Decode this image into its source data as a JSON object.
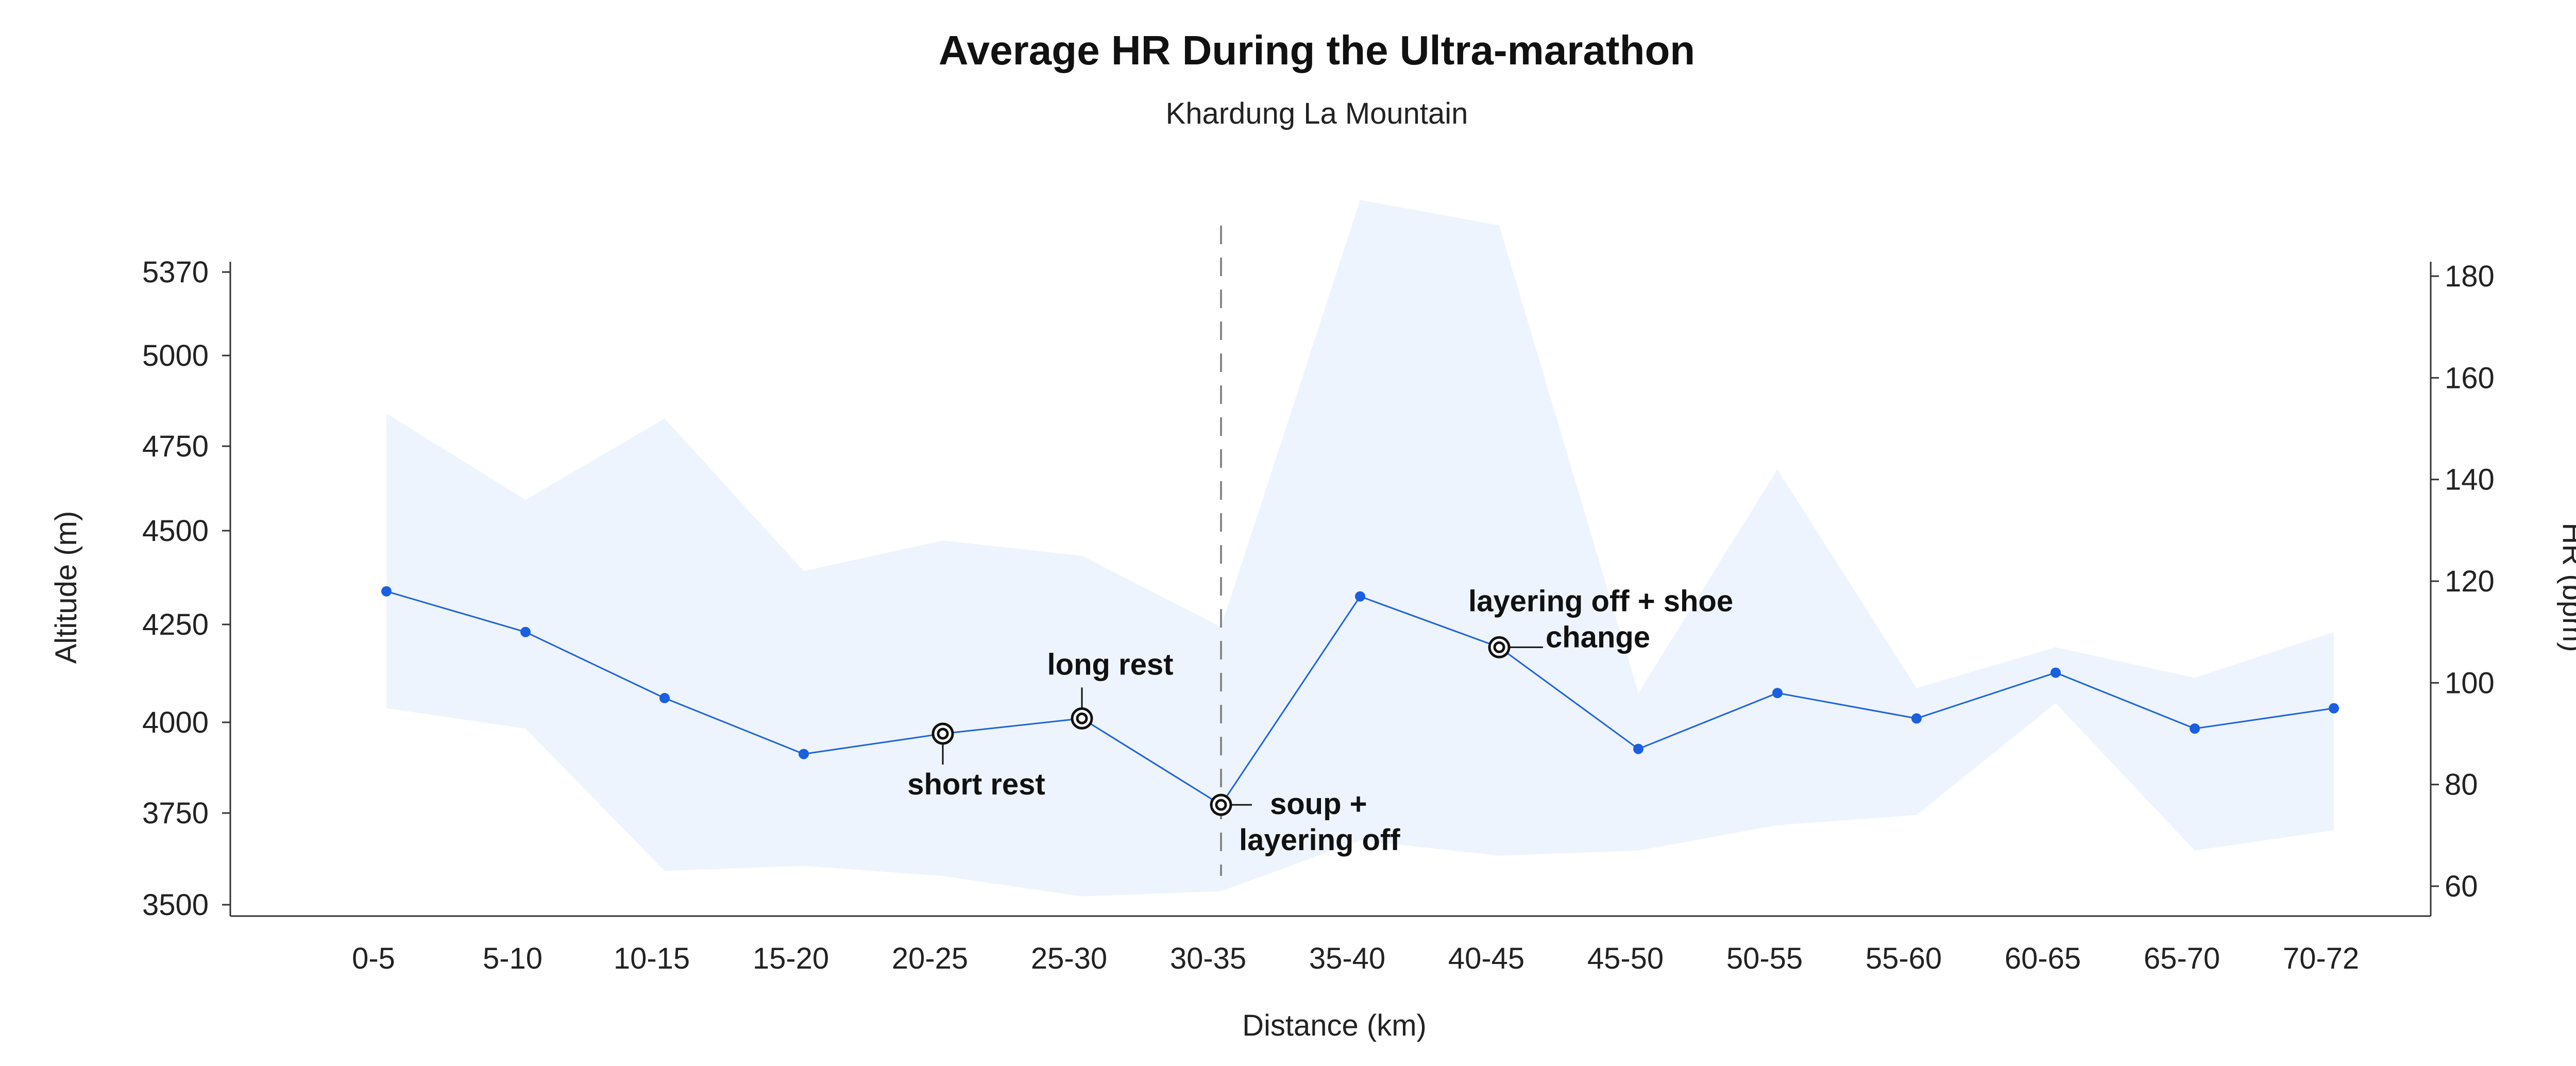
{
  "chart_data": {
    "type": "line",
    "title": "Average HR During the Ultra-marathon",
    "subtitle": "Khardung La Mountain",
    "xlabel": "Distance (km)",
    "ylabel_left": "Altitude (m)",
    "ylabel_right": "HR (bpm)",
    "categories": [
      "0-5",
      "5-10",
      "10-15",
      "15-20",
      "20-25",
      "25-30",
      "30-35",
      "35-40",
      "40-45",
      "45-50",
      "50-55",
      "55-60",
      "60-65",
      "65-70",
      "70-72"
    ],
    "left_axis": {
      "ticks": [
        3500,
        3750,
        4000,
        4250,
        4500,
        4750,
        5000,
        5370
      ]
    },
    "right_axis": {
      "ticks": [
        60,
        80,
        100,
        120,
        140,
        160,
        180
      ]
    },
    "hr_series": {
      "values": [
        118,
        110,
        97,
        86,
        90,
        93,
        76,
        117,
        107,
        87,
        98,
        93,
        102,
        91,
        95
      ]
    },
    "hr_band": {
      "upper": [
        153,
        136,
        152,
        122,
        128,
        125,
        111,
        195,
        190,
        98,
        142,
        99,
        107,
        101,
        110
      ],
      "lower": [
        95,
        91,
        63,
        64,
        62,
        58,
        59,
        69,
        66,
        67,
        72,
        74,
        96,
        67,
        71
      ]
    },
    "divider_category": "30-35",
    "annotations": [
      {
        "category": "20-25",
        "lines": [
          "short rest"
        ]
      },
      {
        "category": "25-30",
        "lines": [
          "long rest"
        ]
      },
      {
        "category": "30-35",
        "lines": [
          "soup +",
          "layering off"
        ]
      },
      {
        "category": "40-45",
        "lines": [
          "layering off + shoe",
          "change"
        ]
      }
    ],
    "colors": {
      "line": "#1e64d9",
      "point": "#1a5fe0",
      "band": "#eef4fd",
      "axis": "#333333",
      "divider": "#888888"
    },
    "grid": false,
    "legend": "none"
  }
}
